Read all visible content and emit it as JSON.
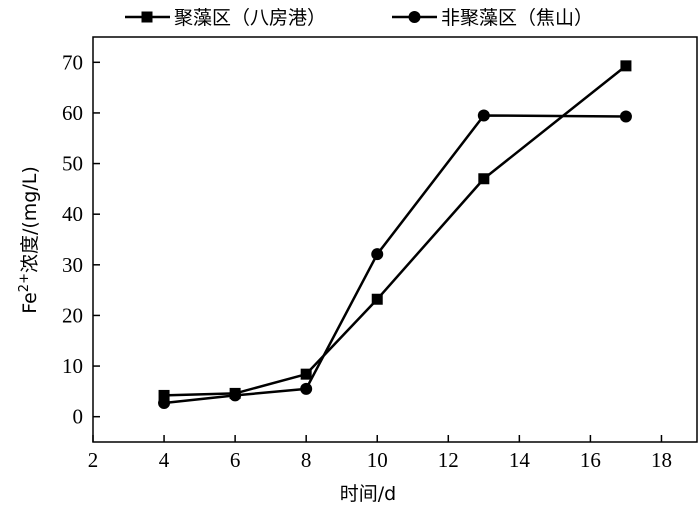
{
  "chart_data": {
    "type": "line",
    "title": "",
    "xlabel": "时间/d",
    "ylabel_main": "Fe",
    "ylabel_sup": "2+",
    "ylabel_rest": "浓度/(mg/L)",
    "xlim": [
      2,
      19
    ],
    "ylim": [
      -5,
      75
    ],
    "xticks": [
      2,
      4,
      6,
      8,
      10,
      12,
      14,
      16,
      18
    ],
    "yticks": [
      0,
      10,
      20,
      30,
      40,
      50,
      60,
      70
    ],
    "legend_position": "top",
    "grid": false,
    "series": [
      {
        "name": "聚藻区（八房港）",
        "marker": "square",
        "color": "#000000",
        "x": [
          4,
          6,
          8,
          10,
          13,
          17
        ],
        "y": [
          4.2,
          4.6,
          8.4,
          23.2,
          47.0,
          69.3
        ]
      },
      {
        "name": "非聚藻区（焦山）",
        "marker": "circle",
        "color": "#000000",
        "x": [
          4,
          6,
          8,
          10,
          13,
          17
        ],
        "y": [
          2.7,
          4.2,
          5.5,
          32.1,
          59.5,
          59.3
        ]
      }
    ]
  }
}
